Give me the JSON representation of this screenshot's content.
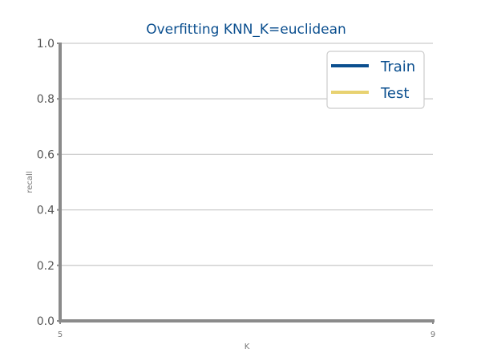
{
  "chart_data": {
    "type": "line",
    "title": "Overfitting KNN_K=euclidean",
    "xlabel": "K",
    "ylabel": "recall",
    "xlim": [
      5,
      9
    ],
    "ylim": [
      0.0,
      1.0
    ],
    "x_ticks": [
      "5",
      "9"
    ],
    "y_ticks": [
      "0.0",
      "0.2",
      "0.4",
      "0.6",
      "0.8",
      "1.0"
    ],
    "grid": "horizontal",
    "legend_position": "top-right",
    "series": [
      {
        "name": "Train",
        "color": "#0b4f8f",
        "x": [],
        "y": []
      },
      {
        "name": "Test",
        "color": "#e8d271",
        "x": [],
        "y": []
      }
    ]
  },
  "colors": {
    "title": "#0b4f8f",
    "axis": "#8a8a8a",
    "grid": "#cccccc",
    "legend_text": "#0b4f8f"
  }
}
